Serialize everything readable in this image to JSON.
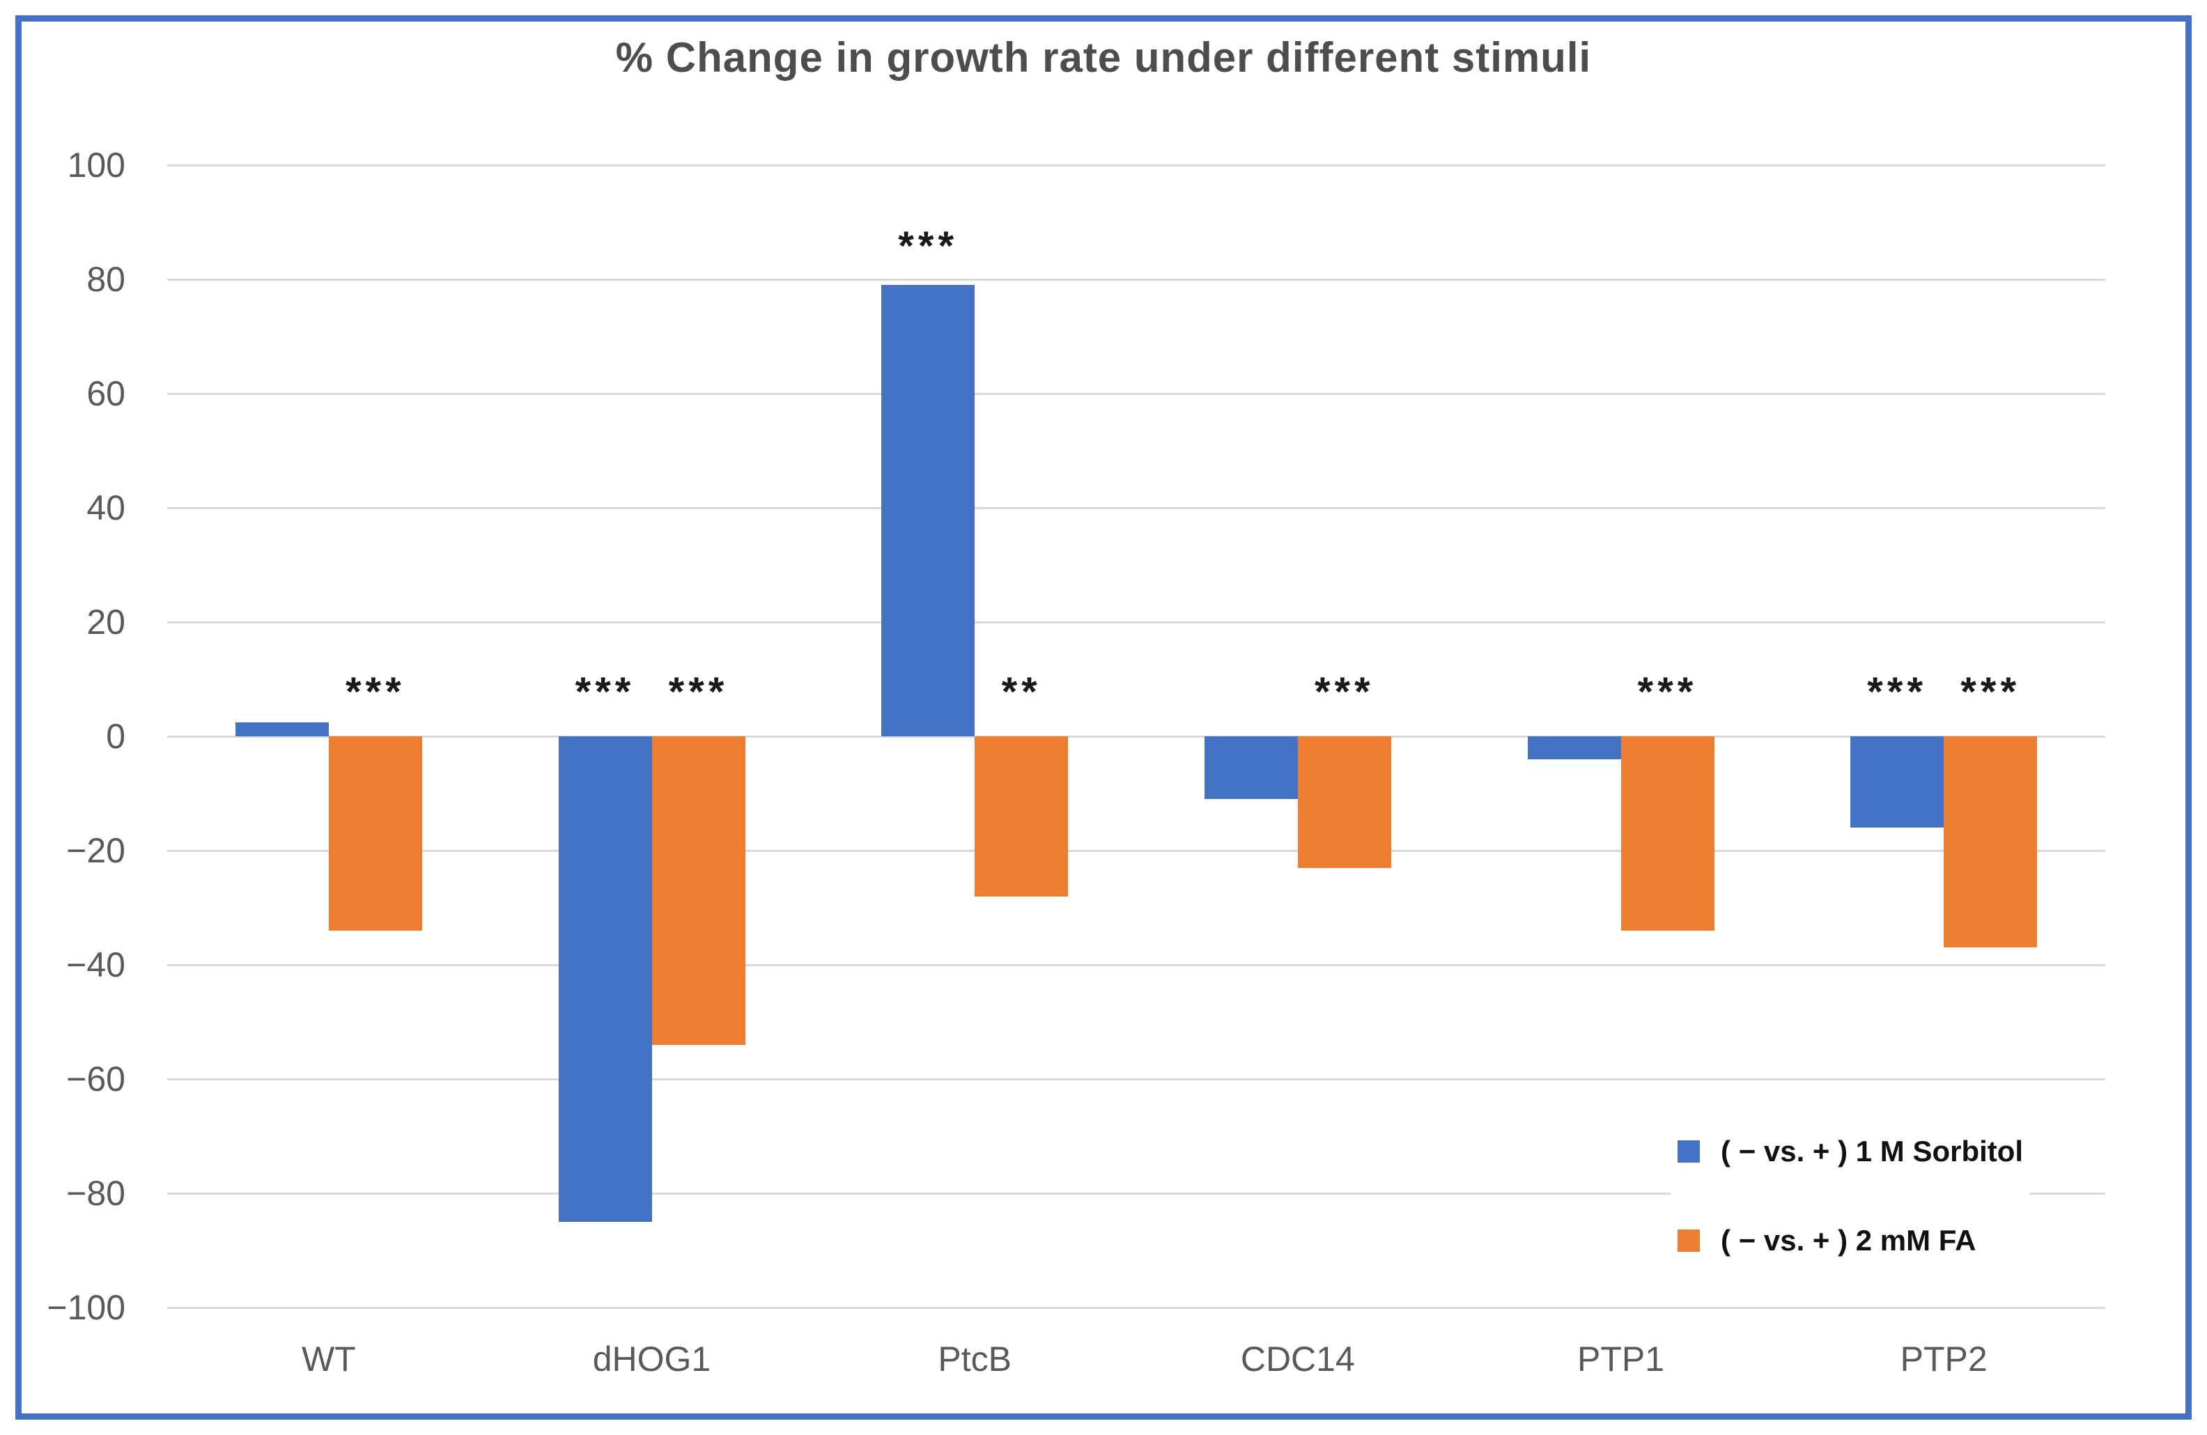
{
  "title": "% Change in growth rate under different stimuli",
  "colors": {
    "series1": "#4472C4",
    "series2": "#ED7D31",
    "frame_border": "#4472C4",
    "gridline": "#D9D9D9",
    "axis_text": "#595959",
    "title_text": "#4d4d4d",
    "annotation_text": "#1a1a1a"
  },
  "legend": {
    "items": [
      {
        "label": "( − vs. + ) 1 M Sorbitol",
        "color": "#4472C4"
      },
      {
        "label": "( − vs. + ) 2 mM FA",
        "color": "#ED7D31"
      }
    ]
  },
  "chart_data": {
    "type": "bar",
    "title": "% Change in growth rate under different stimuli",
    "categories": [
      "WT",
      "dHOG1",
      "PtcB",
      "CDC14",
      "PTP1",
      "PTP2"
    ],
    "series": [
      {
        "name": "( − vs. + ) 1 M Sorbitol",
        "color": "#4472C4",
        "values": [
          2.5,
          -85,
          79,
          -11,
          -4,
          -16
        ],
        "annotations": [
          "",
          "***",
          "***",
          "",
          "",
          "***"
        ]
      },
      {
        "name": "( − vs. + ) 2 mM FA",
        "color": "#ED7D31",
        "values": [
          -34,
          -54,
          -28,
          -23,
          -34,
          -37
        ],
        "annotations": [
          "***",
          "***",
          "**",
          "***",
          "***",
          "***"
        ]
      }
    ],
    "xlabel": "",
    "ylabel": "",
    "ylim": [
      -100,
      100
    ],
    "ytick_step": 20,
    "ytick_labels": [
      "100",
      "80",
      "60",
      "40",
      "20",
      "0",
      "−20",
      "−40",
      "−60",
      "−80",
      "−100"
    ],
    "yticks": [
      100,
      80,
      60,
      40,
      20,
      0,
      -20,
      -40,
      -60,
      -80,
      -100
    ],
    "grid": true,
    "legend_position": "inside-bottom-right"
  }
}
